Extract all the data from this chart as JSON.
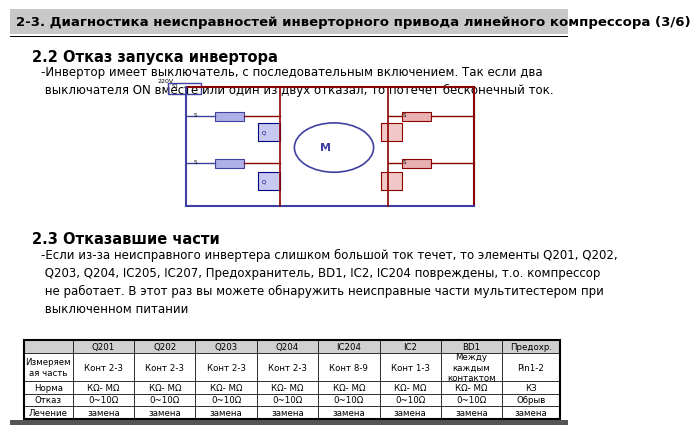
{
  "title": "2-3. Диагностика неисправностей инверторного привода линейного компрессора (3/6)",
  "section_title": "2.2 Отказ запуска инвертора",
  "bullet_text": "-Инвертор имеет выключатель, с последовательным включением. Так если два\n выключателя ON вместе или один из двух отказал, то потечет бесконечный ток.",
  "section2_title": "2.3 Отказавшие части",
  "bullet2_text": "-Если из-за неисправного инвертера слишком большой ток течет, то элементы Q201, Q202,\n Q203, Q204, IC205, IC207, Предохранитель, BD1, IC2, IC204 повреждены, т.о. компрессор\n не работает. В этот раз вы можете обнаружить неисправные части мультитестером при\n выключенном питании",
  "table_headers": [
    "",
    "Q201",
    "Q202",
    "Q203",
    "Q204",
    "IC204",
    "IC2",
    "BD1",
    "Предохр."
  ],
  "table_rows": [
    [
      "Измеряем\nая часть",
      "Конт 2-3",
      "Конт 2-3",
      "Конт 2-3",
      "Конт 2-3",
      "Конт 8-9",
      "Конт 1-3",
      "Между\nкаждым\nконтактом",
      "Pin1-2"
    ],
    [
      "Норма",
      "КΩ- МΩ",
      "КΩ- МΩ",
      "КΩ- МΩ",
      "КΩ- МΩ",
      "КΩ- МΩ",
      "КΩ- МΩ",
      "КΩ- МΩ",
      "КЗ"
    ],
    [
      "Отказ",
      "0~10Ω",
      "0~10Ω",
      "0~10Ω",
      "0~10Ω",
      "0~10Ω",
      "0~10Ω",
      "0~10Ω",
      "Обрыв"
    ],
    [
      "Лечение",
      "замена",
      "замена",
      "замена",
      "замена",
      "замена",
      "замена",
      "замена",
      "замена"
    ]
  ],
  "bg_color": "#ffffff",
  "title_bg": "#c8c8c8",
  "border_color": "#000000",
  "title_font_size": 9.5,
  "body_font_size": 8.5
}
